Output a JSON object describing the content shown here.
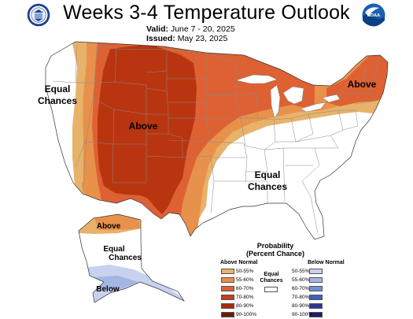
{
  "title": "Weeks 3-4 Temperature Outlook",
  "valid_label": "Valid:",
  "valid_value": "June 7 - 20, 2025",
  "issued_label": "Issued:",
  "issued_value": "May 23, 2025",
  "logos": {
    "left": "doc-seal-icon",
    "right": "noaa-logo-icon",
    "noaa_text": "NOAA"
  },
  "map_labels": {
    "equal_west_1": "Equal",
    "equal_west_2": "Chances",
    "above_center": "Above",
    "above_northeast": "Above",
    "equal_south_1": "Equal",
    "equal_south_2": "Chances",
    "alaska_above": "Above",
    "alaska_equal_1": "Equal",
    "alaska_equal_2": "Chances",
    "alaska_below": "Below"
  },
  "legend": {
    "title_1": "Probability",
    "title_2": "(Percent Chance)",
    "above_header": "Above Normal",
    "below_header": "Below Normal",
    "equal_1": "Equal",
    "equal_2": "Chances",
    "above_items": [
      {
        "label": "50-55%",
        "color": "#e8b26a"
      },
      {
        "label": "55-60%",
        "color": "#e8914b"
      },
      {
        "label": "60-70%",
        "color": "#de6133"
      },
      {
        "label": "70-80%",
        "color": "#c83c1c"
      },
      {
        "label": "80-90%",
        "color": "#a82a0f"
      },
      {
        "label": "90-100%",
        "color": "#6e1a06"
      }
    ],
    "below_items": [
      {
        "label": "50-55%",
        "color": "#c8d2ee"
      },
      {
        "label": "55-60%",
        "color": "#a3b6e4"
      },
      {
        "label": "60-70%",
        "color": "#6f90d8"
      },
      {
        "label": "70-80%",
        "color": "#3d5fbd"
      },
      {
        "label": "80-90%",
        "color": "#2a3a95"
      },
      {
        "label": "90-100%",
        "color": "#1c1d66"
      }
    ]
  }
}
